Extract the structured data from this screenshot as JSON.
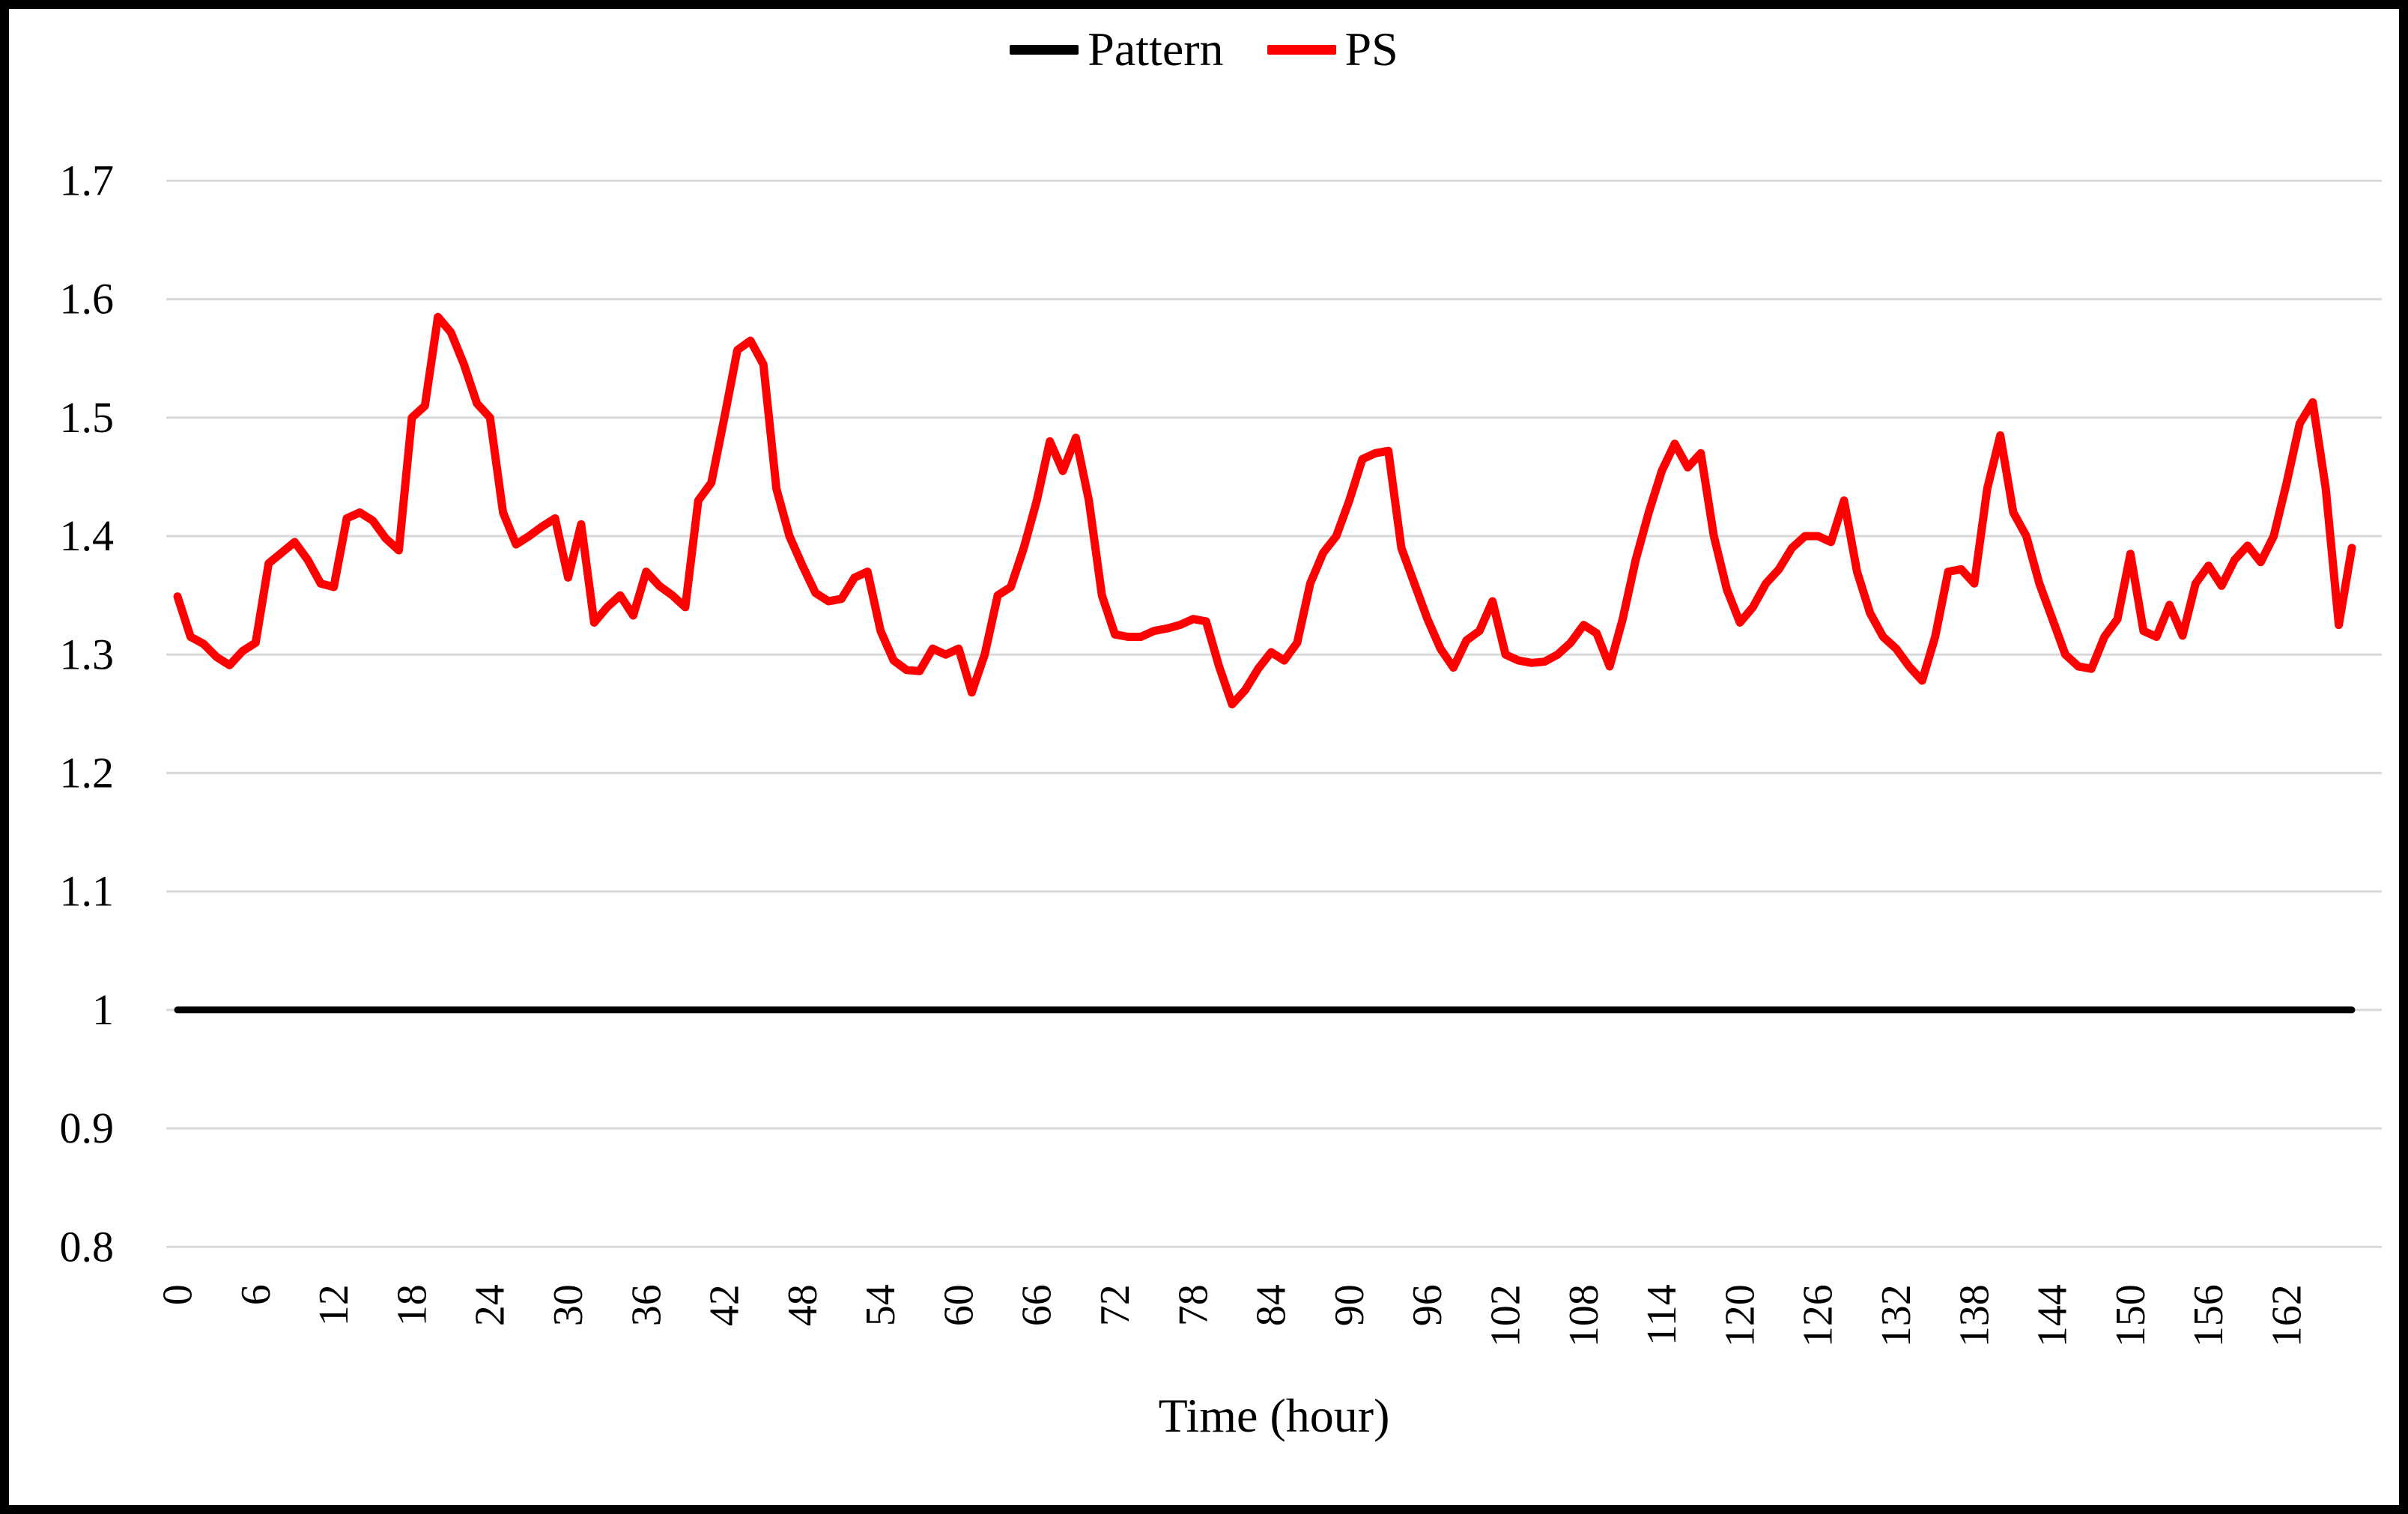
{
  "legend": {
    "items": [
      {
        "label": "Pattern",
        "color": "#000000",
        "swatch": "line"
      },
      {
        "label": "PS",
        "color": "#FF0000",
        "swatch": "line"
      }
    ]
  },
  "colors": {
    "background": "#FFFFFF",
    "border": "#000000",
    "gridline": "#D9D9D9",
    "pattern_line": "#000000",
    "ps_line": "#FF0000"
  },
  "chart_data": {
    "type": "line",
    "title": "",
    "xlabel": "Time (hour)",
    "ylabel": "",
    "x_unit": "hour",
    "x_start_hour": 0,
    "x_end_hour": 167,
    "x_tick_step": 6,
    "x_tick_labels": [
      "0",
      "6",
      "12",
      "18",
      "24",
      "30",
      "36",
      "42",
      "48",
      "54",
      "60",
      "66",
      "72",
      "78",
      "84",
      "90",
      "96",
      "102",
      "108",
      "114",
      "120",
      "126",
      "132",
      "138",
      "144",
      "150",
      "156",
      "162"
    ],
    "y_ticks": [
      1.7,
      1.6,
      1.5,
      1.4,
      1.3,
      1.2,
      1.1,
      1.0,
      0.9,
      0.8
    ],
    "y_tick_labels": [
      "1.7",
      "1.6",
      "1.5",
      "1.4",
      "1.3",
      "1.2",
      "1.1",
      "1",
      "0.9",
      "0.8"
    ],
    "ylim": [
      0.8,
      1.75
    ],
    "grid": "horizontal",
    "legend_position": "top-center",
    "series": [
      {
        "name": "Pattern",
        "color": "#000000",
        "stroke_width": 9,
        "constant_value": 1.0
      },
      {
        "name": "PS",
        "color": "#FF0000",
        "stroke_width": 11,
        "values": [
          1.349,
          1.315,
          1.309,
          1.298,
          1.291,
          1.303,
          1.31,
          1.377,
          1.386,
          1.395,
          1.38,
          1.36,
          1.357,
          1.415,
          1.42,
          1.413,
          1.398,
          1.388,
          1.5,
          1.51,
          1.585,
          1.572,
          1.545,
          1.512,
          1.5,
          1.42,
          1.393,
          1.4,
          1.408,
          1.415,
          1.365,
          1.41,
          1.327,
          1.34,
          1.35,
          1.333,
          1.37,
          1.358,
          1.35,
          1.34,
          1.43,
          1.445,
          1.5,
          1.557,
          1.565,
          1.545,
          1.44,
          1.4,
          1.375,
          1.352,
          1.345,
          1.347,
          1.365,
          1.37,
          1.32,
          1.295,
          1.287,
          1.286,
          1.305,
          1.3,
          1.305,
          1.268,
          1.3,
          1.35,
          1.357,
          1.39,
          1.43,
          1.48,
          1.455,
          1.483,
          1.43,
          1.35,
          1.317,
          1.315,
          1.315,
          1.32,
          1.322,
          1.325,
          1.33,
          1.328,
          1.29,
          1.258,
          1.27,
          1.288,
          1.302,
          1.295,
          1.31,
          1.36,
          1.386,
          1.4,
          1.43,
          1.465,
          1.47,
          1.472,
          1.39,
          1.36,
          1.33,
          1.305,
          1.289,
          1.312,
          1.32,
          1.345,
          1.3,
          1.295,
          1.293,
          1.294,
          1.3,
          1.31,
          1.325,
          1.318,
          1.29,
          1.33,
          1.38,
          1.42,
          1.455,
          1.478,
          1.458,
          1.47,
          1.4,
          1.355,
          1.327,
          1.34,
          1.36,
          1.372,
          1.39,
          1.4,
          1.4,
          1.395,
          1.43,
          1.37,
          1.335,
          1.315,
          1.305,
          1.29,
          1.278,
          1.315,
          1.37,
          1.372,
          1.36,
          1.44,
          1.485,
          1.42,
          1.4,
          1.36,
          1.33,
          1.3,
          1.29,
          1.288,
          1.315,
          1.33,
          1.385,
          1.32,
          1.315,
          1.342,
          1.316,
          1.36,
          1.375,
          1.358,
          1.38,
          1.392,
          1.378,
          1.4,
          1.445,
          1.495,
          1.513,
          1.44,
          1.325,
          1.39
        ]
      }
    ]
  }
}
